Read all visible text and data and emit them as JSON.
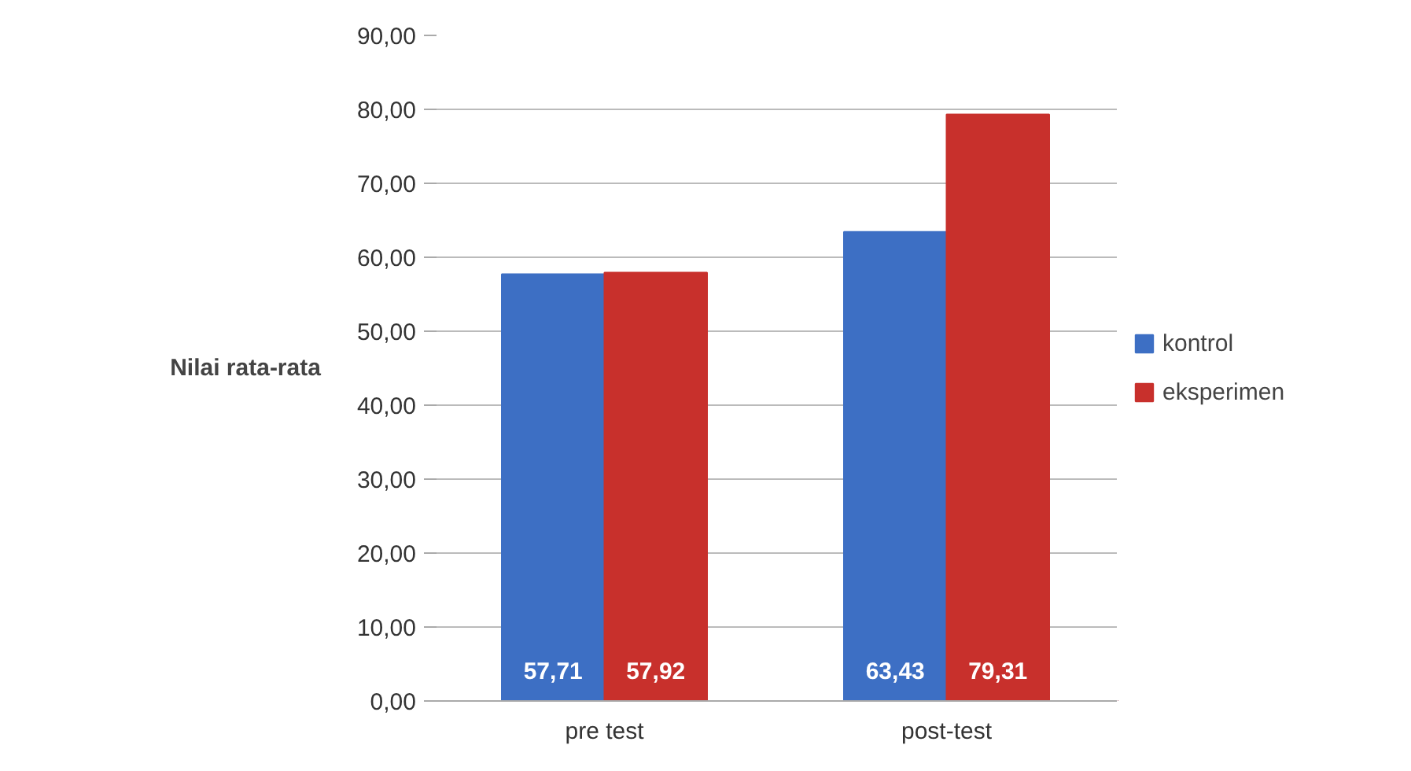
{
  "chart_data": {
    "type": "bar",
    "ylabel": "Nilai rata-rata",
    "categories": [
      "pre test",
      "post-test"
    ],
    "series": [
      {
        "name": "kontrol",
        "color": "#3d6fc4",
        "values": [
          57.71,
          63.43
        ],
        "value_labels": [
          "57,71",
          "63,43"
        ]
      },
      {
        "name": "eksperimen",
        "color": "#c8302c",
        "values": [
          57.92,
          79.31
        ],
        "value_labels": [
          "57,92",
          "79,31"
        ]
      }
    ],
    "ylim": [
      0,
      90
    ],
    "yticks": [
      {
        "value": 0,
        "label": "0,00"
      },
      {
        "value": 10,
        "label": "10,00"
      },
      {
        "value": 20,
        "label": "20,00"
      },
      {
        "value": 30,
        "label": "30,00"
      },
      {
        "value": 40,
        "label": "40,00"
      },
      {
        "value": 50,
        "label": "50,00"
      },
      {
        "value": 60,
        "label": "60,00"
      },
      {
        "value": 70,
        "label": "70,00"
      },
      {
        "value": 80,
        "label": "80,00"
      },
      {
        "value": 90,
        "label": "90,00"
      }
    ],
    "grid": "y",
    "legend": "right"
  }
}
